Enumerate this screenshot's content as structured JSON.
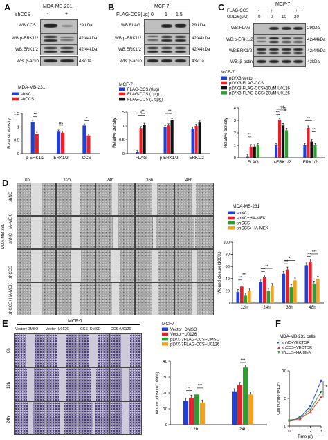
{
  "panels": {
    "A": "A",
    "B": "B",
    "C": "C",
    "D": "D",
    "E": "E",
    "F": "F"
  },
  "A": {
    "cell_line": "MDA-MB-231",
    "row_label": "shCCS",
    "signs": [
      "-",
      "+"
    ],
    "blots": [
      "WB:CCS",
      "WB:p-ERK1/2",
      "WB:ERK1/2",
      "WB: β-actin"
    ],
    "sizes": [
      "29 kDa",
      "42/44kDa",
      "42/44kDa",
      "43kDa"
    ]
  },
  "B": {
    "cell_line": "MCF-7",
    "row_label": "FLAG-CCS(μg)",
    "doses": [
      "0",
      "1",
      "1.5"
    ],
    "blots": [
      "WB:FLAG",
      "WB:p-ERK1/2",
      "WB:ERK1/2",
      "WB: β-actin"
    ],
    "sizes": [
      "29 kDa",
      "42/44kDa",
      "42/44kDa",
      "43kDa"
    ]
  },
  "C": {
    "cell_line": "MCF-7",
    "rows": [
      "FLAG-CCS",
      "U0126(μM)"
    ],
    "flag_signs": [
      "-",
      "+",
      "+",
      "+"
    ],
    "u0126": [
      "0",
      "0",
      "10",
      "20"
    ],
    "blots": [
      "WB:FLAG",
      "WB:p-ERK1/2",
      "WB:ERK1/2",
      "WB: β-actin"
    ],
    "sizes": [
      "29kDa",
      "42/44kDa",
      "42/44kDa",
      "43kDa"
    ]
  },
  "D": {
    "side_label": "MDA-MB-231",
    "row_labels": [
      "shNC",
      "shNC+HA-MEK",
      "shCCS",
      "shCCS+HA-MEK"
    ],
    "col_labels": [
      "0h",
      "12h",
      "24h",
      "36h",
      "48h"
    ]
  },
  "E": {
    "cell_line": "MCF-7",
    "col_labels": [
      "Vector+DMSO",
      "Vector+U0126",
      "CCS+DMSO",
      "CCS+U0126"
    ],
    "row_labels": [
      "0h",
      "12h",
      "24h"
    ]
  },
  "chart_data": [
    {
      "id": "A-chart",
      "type": "bar",
      "title": "MDA-MB-231",
      "categories": [
        "p-ERK1/2",
        "ERK1/2",
        "CCS"
      ],
      "series": [
        {
          "name": "shNC",
          "color": "#1f3fd6",
          "values": [
            1.18,
            0.82,
            1.05
          ]
        },
        {
          "name": "shCCS",
          "color": "#e8202a",
          "values": [
            0.74,
            0.78,
            0.68
          ]
        }
      ],
      "ylabel": "Relative density",
      "ylim": [
        0,
        1.5
      ],
      "yticks": [
        0,
        0.5,
        1,
        1.5
      ],
      "annotations": [
        "**",
        "ns",
        "*"
      ]
    },
    {
      "id": "B-chart",
      "type": "bar",
      "title": "MCF-7",
      "categories": [
        "FLAG",
        "p-ERK1/2",
        "ERK1/2"
      ],
      "series": [
        {
          "name": "FLAG-CCS (0μg)",
          "color": "#1f3fd6",
          "values": [
            0.05,
            0.95,
            0.9
          ]
        },
        {
          "name": "FLAG-CCS (1μg)",
          "color": "#e8202a",
          "values": [
            0.92,
            1.02,
            1.0
          ]
        },
        {
          "name": "FLAG-CCS (1.5μg)",
          "color": "#111111",
          "values": [
            1.04,
            1.2,
            1.12
          ]
        }
      ],
      "ylabel": "Relative density",
      "ylim": [
        0,
        1.5
      ],
      "yticks": [
        0,
        0.5,
        1,
        1.5
      ],
      "annotations": [
        "*",
        "*",
        "*",
        "**"
      ]
    },
    {
      "id": "C-chart",
      "type": "bar",
      "title": "MCF-7",
      "categories": [
        "FLAG",
        "p-ERK1/2",
        "ERK1/2"
      ],
      "series": [
        {
          "name": "pLVX3 vector",
          "color": "#1f3fd6",
          "values": [
            0.08,
            1.0,
            1.0
          ]
        },
        {
          "name": "pLVX3-FLAG-CCS",
          "color": "#e8202a",
          "values": [
            0.9,
            3.0,
            2.4
          ]
        },
        {
          "name": "pLVX3-FLAG-CCS+10μM U0126",
          "color": "#111111",
          "values": [
            0.9,
            2.6,
            1.3
          ]
        },
        {
          "name": "pLVX3-FLAG-CCS+20μM U0126",
          "color": "#2e9e2e",
          "values": [
            1.0,
            2.2,
            1.0
          ]
        }
      ],
      "ylabel": "Relative density",
      "ylim": [
        0,
        4
      ],
      "yticks": [
        0,
        1,
        2,
        3,
        4
      ],
      "annotations": [
        "**",
        "***",
        "***",
        "*",
        "***",
        "**",
        "**"
      ]
    },
    {
      "id": "D-chart",
      "type": "bar",
      "title": "MDA-MB-231",
      "categories": [
        "12h",
        "24h",
        "36h",
        "48h"
      ],
      "series": [
        {
          "name": "shNC",
          "color": "#1f3fd6",
          "values": [
            18,
            35,
            48,
            62
          ]
        },
        {
          "name": "shNC+HA-MEK",
          "color": "#e8202a",
          "values": [
            27,
            42,
            55,
            68
          ]
        },
        {
          "name": "shCCS",
          "color": "#2e9e2e",
          "values": [
            12,
            20,
            26,
            32
          ]
        },
        {
          "name": "shCCS+HA-MEK",
          "color": "#f5a21b",
          "values": [
            20,
            28,
            37,
            40
          ]
        }
      ],
      "ylabel": "Wound closure(100%)",
      "ylim": [
        0,
        100
      ],
      "yticks": [
        0,
        20,
        40,
        60,
        80,
        100
      ],
      "annotations": [
        "**",
        "**",
        "***",
        "**",
        "***",
        "*",
        "***",
        "***"
      ]
    },
    {
      "id": "E-chart",
      "type": "bar",
      "title": "MCF7",
      "categories": [
        "12h",
        "24h"
      ],
      "series": [
        {
          "name": "Vector+DMSO",
          "color": "#1f3fd6",
          "values": [
            15,
            21
          ]
        },
        {
          "name": "Vector+U0126",
          "color": "#e8202a",
          "values": [
            17,
            25
          ]
        },
        {
          "name": "pLVX-3FLAG-CCS+DMSO",
          "color": "#2e9e2e",
          "values": [
            19,
            36
          ]
        },
        {
          "name": "pLVX-3FLAG-CCS+U0126",
          "color": "#f5a21b",
          "values": [
            14,
            19
          ]
        }
      ],
      "ylabel": "Wound closure(100%)",
      "ylim": [
        0,
        40
      ],
      "yticks": [
        0,
        10,
        20,
        30,
        40
      ],
      "annotations": [
        "**",
        "***",
        "***"
      ]
    },
    {
      "id": "F-chart",
      "type": "line",
      "title": "MDA-MB-231 cells",
      "x": [
        0,
        1,
        2,
        3
      ],
      "series": [
        {
          "name": "shNC+VECTOR",
          "color": "#1f3fd6",
          "marker": "circle",
          "values": [
            1.0,
            1.6,
            3.6,
            8.2
          ]
        },
        {
          "name": "shCCS+VECTOR",
          "color": "#e8202a",
          "marker": "triangle-up",
          "values": [
            1.0,
            1.3,
            2.6,
            5.2
          ]
        },
        {
          "name": "shCCS+HA-MEK",
          "color": "#2e9e2e",
          "marker": "triangle-down",
          "values": [
            1.0,
            1.5,
            3.0,
            6.2
          ]
        }
      ],
      "xlabel": "Time (d)",
      "ylabel": "Cell number(×10⁴)",
      "xlim": [
        0,
        3
      ],
      "ylim": [
        0,
        10
      ],
      "xticks": [
        0,
        1,
        2,
        3
      ],
      "yticks": [
        0,
        5,
        10
      ],
      "annotations": [
        "**",
        "*"
      ]
    }
  ]
}
